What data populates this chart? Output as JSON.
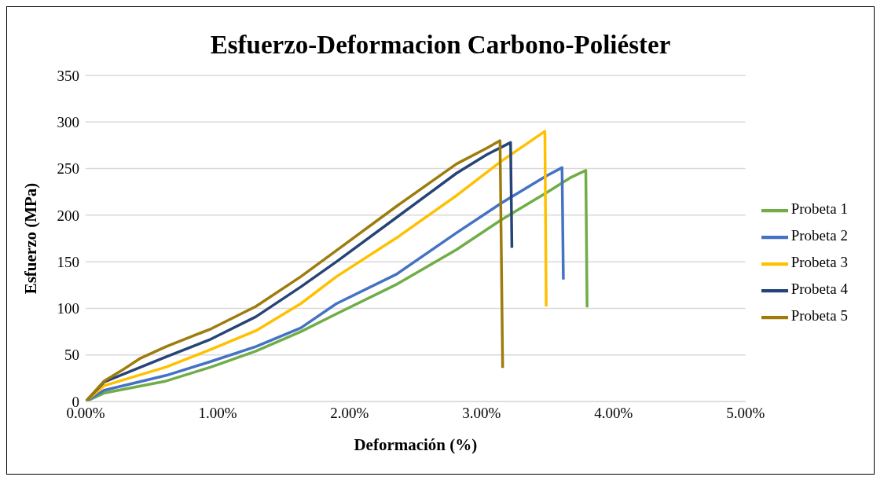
{
  "chart_data": {
    "type": "line",
    "title": "Esfuerzo-Deformacion Carbono-Poliéster",
    "xlabel": "Deformación (%)",
    "ylabel": "Esfuerzo (MPa)",
    "xlim": [
      0,
      5
    ],
    "xticks": [
      {
        "value": 0,
        "label": "0.00%"
      },
      {
        "value": 1,
        "label": "1.00%"
      },
      {
        "value": 2,
        "label": "2.00%"
      },
      {
        "value": 3,
        "label": "3.00%"
      },
      {
        "value": 4,
        "label": "4.00%"
      },
      {
        "value": 5,
        "label": "5.00%"
      }
    ],
    "ylim": [
      0,
      350
    ],
    "yticks": [
      0,
      50,
      100,
      150,
      200,
      250,
      300,
      350
    ],
    "grid": "y",
    "legend": "right",
    "marker": "none",
    "line_style": "solid",
    "series": [
      {
        "name": "Probeta 1",
        "color": "#70ad47",
        "x": [
          0,
          0.14,
          0.61,
          0.95,
          1.29,
          1.63,
          1.9,
          2.36,
          2.81,
          3.15,
          3.49,
          3.67,
          3.79,
          3.8
        ],
        "values": [
          0,
          9,
          22,
          37,
          54,
          75,
          94,
          126,
          163,
          195,
          224,
          240,
          248,
          101
        ]
      },
      {
        "name": "Probeta 2",
        "color": "#4472c4",
        "x": [
          0,
          0.14,
          0.61,
          0.95,
          1.29,
          1.63,
          1.9,
          2.36,
          2.81,
          3.15,
          3.49,
          3.61,
          3.62
        ],
        "values": [
          0,
          12,
          28,
          43,
          59,
          79,
          105,
          137,
          181,
          213,
          242,
          251,
          131
        ]
      },
      {
        "name": "Probeta 3",
        "color": "#ffc000",
        "x": [
          0,
          0.14,
          0.61,
          0.95,
          1.29,
          1.63,
          1.9,
          2.36,
          2.81,
          3.15,
          3.48,
          3.49
        ],
        "values": [
          0,
          17,
          37,
          56,
          76,
          105,
          134,
          176,
          221,
          258,
          290,
          102
        ]
      },
      {
        "name": "Probeta 4",
        "color": "#264478",
        "x": [
          0,
          0.14,
          0.61,
          0.95,
          1.29,
          1.63,
          1.9,
          2.36,
          2.81,
          3.04,
          3.22,
          3.23
        ],
        "values": [
          0,
          21,
          48,
          67,
          91,
          123,
          150,
          198,
          245,
          265,
          278,
          165
        ]
      },
      {
        "name": "Probeta 5",
        "color": "#9e7c0c",
        "x": [
          0,
          0.14,
          0.27,
          0.41,
          0.61,
          0.95,
          1.29,
          1.63,
          1.9,
          2.36,
          2.81,
          3.04,
          3.14,
          3.16
        ],
        "values": [
          0,
          22,
          33,
          46,
          59,
          78,
          102,
          134,
          162,
          210,
          255,
          272,
          280,
          36
        ]
      }
    ]
  }
}
